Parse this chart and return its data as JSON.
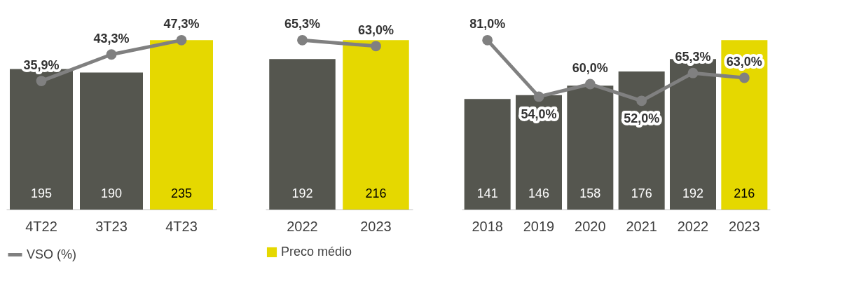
{
  "chart_data": [
    {
      "type": "bar",
      "categories": [
        "4T22",
        "3T23",
        "4T23"
      ],
      "tick_labels": "x",
      "legend": "bottom",
      "marker": "circle",
      "series": [
        {
          "colors": [
            "#55564f",
            "#55564f",
            "#e5d800"
          ],
          "values": [
            195,
            190,
            235
          ],
          "value_labels": [
            "195",
            "190",
            "235"
          ]
        },
        {
          "type": "line",
          "name": "VSO (%)",
          "color": "#808080",
          "axis": "y2",
          "values": [
            35.9,
            43.3,
            47.3
          ],
          "value_labels": [
            "35,9%",
            "43,3%",
            "47,3%"
          ]
        }
      ]
    },
    {
      "type": "bar",
      "categories": [
        "2022",
        "2023"
      ],
      "tick_labels": "x",
      "legend": "bottom",
      "marker": "circle",
      "series": [
        {
          "name": "Preco médio",
          "colors": [
            "#55564f",
            "#e5d800"
          ],
          "values": [
            192,
            216
          ],
          "value_labels": [
            "192",
            "216"
          ]
        },
        {
          "type": "line",
          "color": "#808080",
          "axis": "y2",
          "values": [
            65.3,
            63.0
          ],
          "value_labels": [
            "65,3%",
            "63,0%"
          ]
        }
      ]
    },
    {
      "type": "bar",
      "categories": [
        "2018",
        "2019",
        "2020",
        "2021",
        "2022",
        "2023"
      ],
      "tick_labels": "x",
      "marker": "circle",
      "series": [
        {
          "colors": [
            "#55564f",
            "#55564f",
            "#55564f",
            "#55564f",
            "#55564f",
            "#e5d800"
          ],
          "values": [
            141,
            146,
            158,
            176,
            192,
            216
          ],
          "value_labels": [
            "141",
            "146",
            "158",
            "176",
            "192",
            "216"
          ]
        },
        {
          "type": "line",
          "color": "#808080",
          "axis": "y2",
          "values": [
            81.0,
            54.0,
            60.0,
            52.0,
            65.3,
            63.0
          ],
          "value_labels": [
            "81,0%",
            "54,0%",
            "60,0%",
            "52,0%",
            "65,3%",
            "63,0%"
          ]
        }
      ]
    }
  ]
}
